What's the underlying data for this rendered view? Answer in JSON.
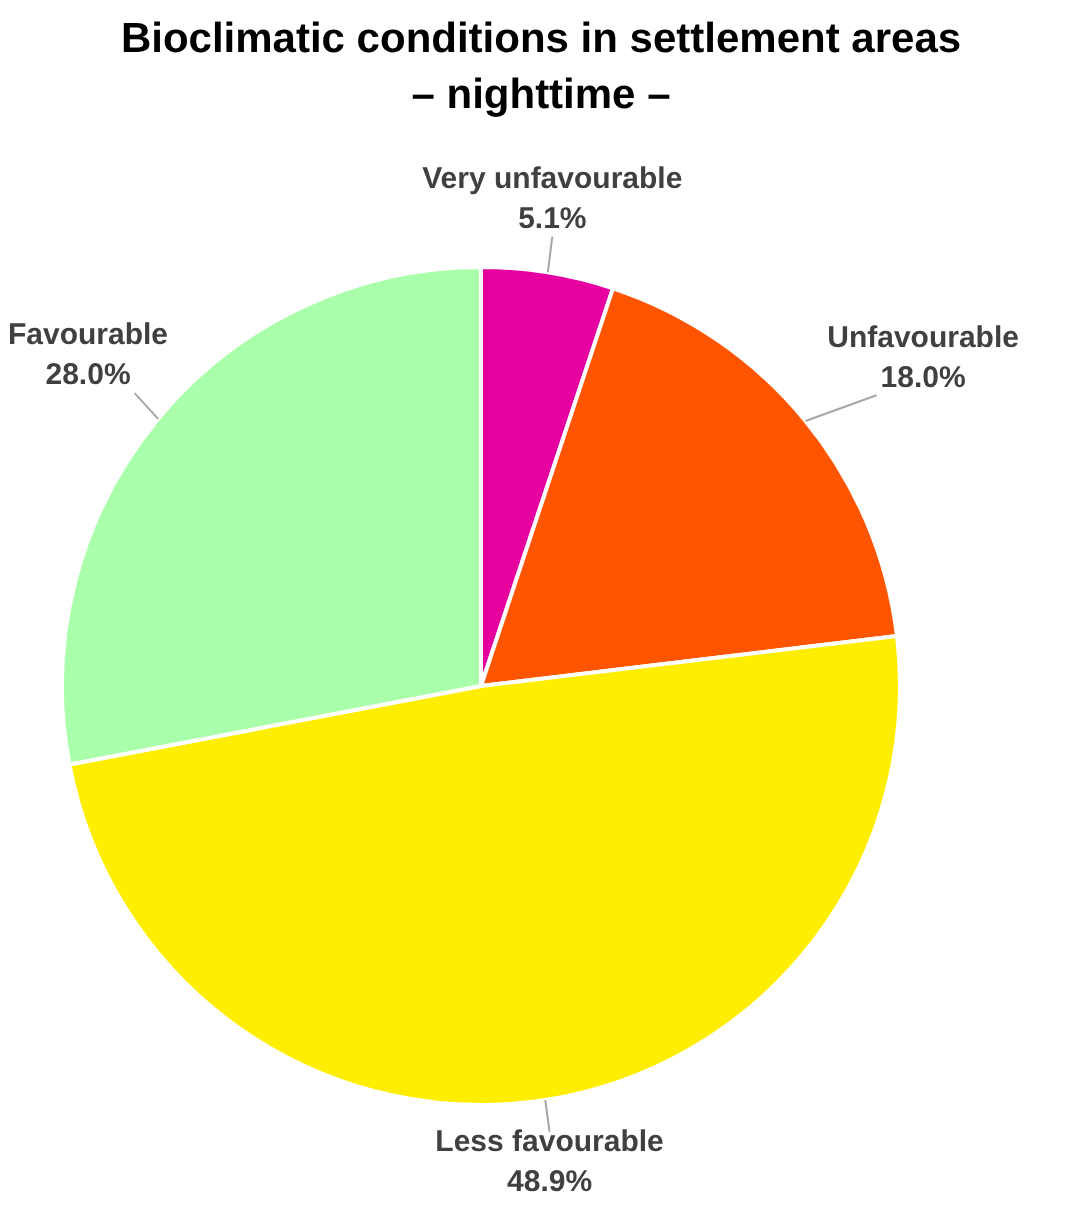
{
  "chart_data": {
    "type": "pie",
    "title": "Bioclimatic conditions in settlement areas",
    "subtitle": "– nighttime –",
    "categories": [
      "Very unfavourable",
      "Unfavourable",
      "Less favourable",
      "Favourable"
    ],
    "values": [
      5.1,
      18.0,
      48.9,
      28.0
    ],
    "value_labels": [
      "5.1%",
      "18.0%",
      "48.9%",
      "28.0%"
    ],
    "colors": [
      "#e600a0",
      "#ff5500",
      "#ffee00",
      "#aaffaa"
    ],
    "legend": false
  }
}
